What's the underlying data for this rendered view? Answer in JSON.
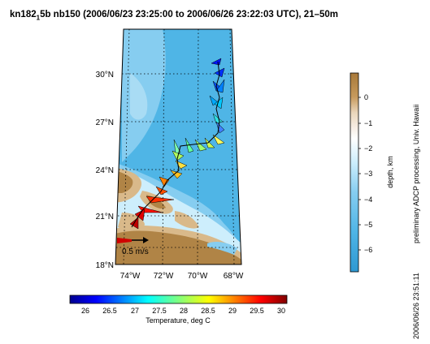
{
  "title": {
    "cruise": "kn182",
    "sub": "1",
    "rest": "5b nb150 (2006/06/23 23:25:00 to 2006/06/26 23:22:03 UTC), 21–50m"
  },
  "map": {
    "lat_ticks": [
      "18°N",
      "21°N",
      "24°N",
      "27°N",
      "30°N"
    ],
    "lon_ticks": [
      "74°W",
      "72°W",
      "70°W",
      "68°W"
    ],
    "scale_label": "0.5 m/s",
    "colors": {
      "deep": "#4fb5e6",
      "mid": "#86cdf0",
      "shelf": "#cdeefc",
      "land": "#b08446",
      "land_light": "#d9b98a"
    }
  },
  "depth_bar": {
    "label": "depth, km",
    "ticks": [
      "0",
      "−1",
      "−2",
      "−3",
      "−4",
      "−5",
      "−6"
    ]
  },
  "temp_bar": {
    "label": "Temperature, deg C",
    "ticks": [
      "26",
      "26.5",
      "27",
      "27.5",
      "28",
      "28.5",
      "29",
      "29.5",
      "30"
    ]
  },
  "credit": "preliminary ADCP processing, Univ. Hawaii",
  "timestamp": "2006/06/26 23:51:11"
}
